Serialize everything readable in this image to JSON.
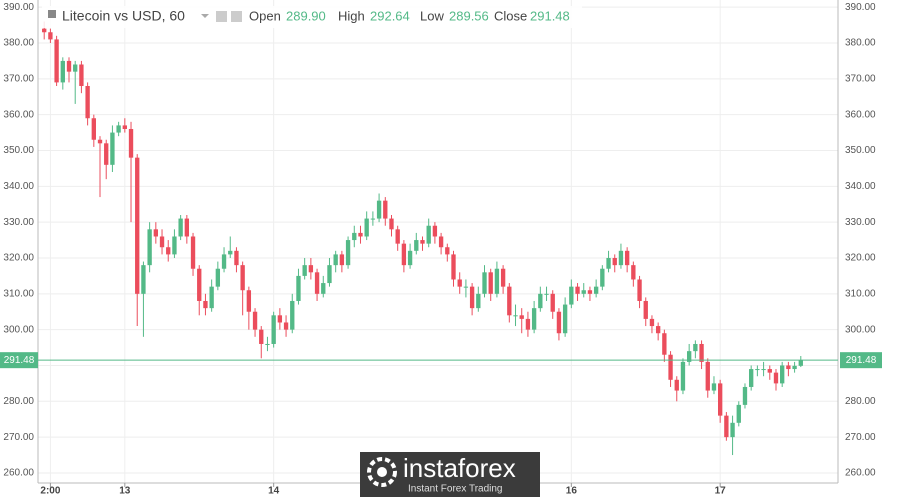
{
  "header": {
    "title": "Litecoin vs USD, 60",
    "open_label": "Open",
    "open": "289.90",
    "high_label": "High",
    "high": "292.64",
    "low_label": "Low",
    "low": "289.56",
    "close_label": "Close",
    "close": "291.48"
  },
  "watermark": {
    "brand": "instaforex",
    "tagline": "Instant Forex Trading"
  },
  "chart_data": {
    "type": "candlestick",
    "up_color": "#53b987",
    "down_color": "#eb4d5c",
    "ylim": [
      257.2,
      392
    ],
    "yticks": [
      {
        "value": 260,
        "label": "260.00"
      },
      {
        "value": 270,
        "label": "270.00"
      },
      {
        "value": 280,
        "label": "280.00"
      },
      {
        "value": 290,
        "label": "290.00"
      },
      {
        "value": 300,
        "label": "300.00"
      },
      {
        "value": 310,
        "label": "310.00"
      },
      {
        "value": 320,
        "label": "320.00"
      },
      {
        "value": 330,
        "label": "330.00"
      },
      {
        "value": 340,
        "label": "340.00"
      },
      {
        "value": 350,
        "label": "350.00"
      },
      {
        "value": 360,
        "label": "360.00"
      },
      {
        "value": 370,
        "label": "370.00"
      },
      {
        "value": 380,
        "label": "380.00"
      },
      {
        "value": 390,
        "label": "390.00"
      }
    ],
    "xlim": [
      -1,
      128
    ],
    "xticks": [
      {
        "value": 1,
        "label": "2:00"
      },
      {
        "value": 13,
        "label": "13"
      },
      {
        "value": 37,
        "label": "14"
      },
      {
        "value": 85,
        "label": "16"
      },
      {
        "value": 109,
        "label": "17"
      }
    ],
    "last_price": {
      "value": 291.48,
      "label": "291.48",
      "color": "#53b987"
    },
    "grid": true,
    "open": [
      384,
      383,
      381,
      369,
      375,
      372,
      374,
      368,
      359,
      353,
      352,
      346,
      355,
      357,
      356,
      348,
      310,
      318,
      328,
      326,
      323,
      321,
      326,
      331,
      326,
      317,
      308,
      306,
      312,
      317,
      321,
      322,
      318,
      311,
      305,
      300,
      296,
      296,
      304,
      302,
      300,
      308,
      315,
      318,
      316,
      310,
      313,
      318,
      321,
      318,
      325,
      327,
      326,
      331,
      331,
      336,
      331,
      328,
      324,
      318,
      322,
      325,
      324,
      329,
      326,
      323,
      321,
      314,
      312,
      312,
      306,
      310,
      316,
      310,
      317,
      312,
      304,
      304,
      303,
      300,
      306,
      310,
      310,
      305,
      299,
      307,
      312,
      310,
      311,
      310,
      312,
      317,
      320,
      318,
      322,
      318,
      314,
      308,
      303,
      301,
      299,
      293,
      286,
      283,
      291,
      294,
      296,
      291,
      283,
      285,
      276,
      270,
      274,
      279,
      284,
      289,
      289,
      289,
      288,
      285,
      290,
      289,
      289.9
    ],
    "high": [
      386,
      384,
      382,
      376,
      376,
      375,
      375,
      369,
      360,
      354,
      353,
      357,
      358,
      359,
      358,
      349,
      319,
      330,
      330,
      328,
      325,
      328,
      332,
      332,
      327,
      318,
      310,
      314,
      319,
      323,
      326,
      323,
      319,
      312,
      306,
      301,
      298,
      305,
      306,
      304,
      310,
      317,
      320,
      320,
      317,
      315,
      320,
      322,
      322,
      326,
      329,
      329,
      333,
      333,
      338,
      337,
      332,
      329,
      325,
      324,
      327,
      326,
      331,
      330,
      327,
      324,
      322,
      316,
      314,
      313,
      312,
      318,
      317,
      319,
      318,
      313,
      307,
      306,
      305,
      308,
      312,
      312,
      311,
      306,
      309,
      314,
      313,
      313,
      312,
      314,
      318,
      322,
      321,
      324,
      323,
      319,
      315,
      309,
      304,
      302,
      300,
      294,
      287,
      292,
      296,
      297,
      297,
      292,
      287,
      286,
      277,
      276,
      280,
      285,
      290,
      290,
      291,
      290,
      289,
      291,
      291,
      291,
      292.64
    ],
    "low": [
      381,
      380,
      368,
      367,
      369,
      363,
      366,
      357,
      351,
      337,
      342,
      344,
      354,
      355,
      330,
      301,
      298,
      316,
      324,
      321,
      319,
      320,
      325,
      324,
      315,
      304,
      304,
      305,
      311,
      316,
      320,
      316,
      304,
      300,
      298,
      292,
      294,
      295,
      300,
      298,
      299,
      307,
      314,
      314,
      308,
      309,
      312,
      316,
      316,
      317,
      323,
      324,
      325,
      329,
      330,
      329,
      326,
      322,
      316,
      317,
      321,
      322,
      323,
      324,
      321,
      319,
      312,
      310,
      309,
      304,
      305,
      309,
      308,
      309,
      310,
      302,
      301,
      299,
      298,
      299,
      305,
      308,
      303,
      297,
      298,
      306,
      308,
      309,
      308,
      309,
      311,
      316,
      316,
      317,
      316,
      312,
      306,
      301,
      299,
      297,
      291,
      284,
      280,
      282,
      290,
      292,
      289,
      281,
      282,
      274,
      269,
      265,
      273,
      278,
      283,
      287,
      287,
      286,
      283,
      284,
      287,
      288,
      289.56
    ],
    "close": [
      383,
      381,
      369,
      375,
      372,
      374,
      368,
      359,
      353,
      352,
      346,
      355,
      357,
      356,
      348,
      310,
      318,
      328,
      326,
      323,
      321,
      326,
      331,
      326,
      317,
      308,
      306,
      312,
      317,
      321,
      322,
      318,
      311,
      305,
      300,
      296,
      296,
      304,
      302,
      300,
      308,
      315,
      318,
      316,
      310,
      313,
      318,
      321,
      318,
      325,
      327,
      326,
      331,
      331,
      336,
      331,
      328,
      324,
      318,
      322,
      325,
      324,
      329,
      326,
      323,
      321,
      314,
      312,
      312,
      306,
      310,
      316,
      310,
      317,
      312,
      304,
      304,
      303,
      300,
      306,
      310,
      310,
      305,
      299,
      307,
      312,
      310,
      311,
      310,
      312,
      317,
      320,
      318,
      322,
      318,
      314,
      308,
      303,
      301,
      299,
      293,
      286,
      283,
      291,
      294,
      296,
      291,
      283,
      285,
      276,
      270,
      274,
      279,
      284,
      289,
      289,
      289,
      288,
      285,
      290,
      289,
      289.9,
      291.48
    ]
  }
}
